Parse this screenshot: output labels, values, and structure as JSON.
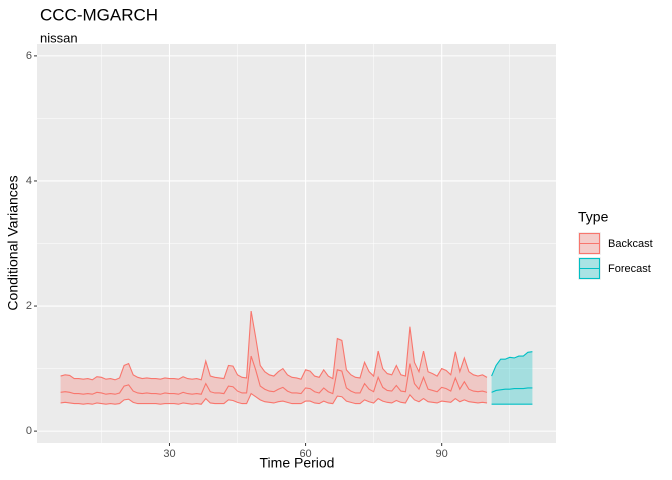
{
  "chart_data": {
    "type": "ribbon",
    "title": "CCC-MGARCH",
    "subtitle": "nissan",
    "x_label": "Time Period",
    "y_label": "Conditional Variances",
    "legend_title": "Type",
    "xlim": [
      0.8,
      115.2
    ],
    "ylim": [
      -0.19,
      6.19
    ],
    "xticks": [
      30,
      60,
      90
    ],
    "yticks": [
      0,
      2,
      4,
      6
    ],
    "grid": true,
    "series": [
      {
        "name": "Backcast",
        "color": "#F8766D",
        "x": [
          6,
          7,
          8,
          9,
          10,
          11,
          12,
          13,
          14,
          15,
          16,
          17,
          18,
          19,
          20,
          21,
          22,
          23,
          24,
          25,
          26,
          27,
          28,
          29,
          30,
          31,
          32,
          33,
          34,
          35,
          36,
          37,
          38,
          39,
          40,
          41,
          42,
          43,
          44,
          45,
          46,
          47,
          48,
          49,
          50,
          51,
          52,
          53,
          54,
          55,
          56,
          57,
          58,
          59,
          60,
          61,
          62,
          63,
          64,
          65,
          66,
          67,
          68,
          69,
          70,
          71,
          72,
          73,
          74,
          75,
          76,
          77,
          78,
          79,
          80,
          81,
          82,
          83,
          84,
          85,
          86,
          87,
          88,
          89,
          90,
          91,
          92,
          93,
          94,
          95,
          96,
          97,
          98,
          99,
          100
        ],
        "upper": [
          0.88,
          0.9,
          0.89,
          0.84,
          0.84,
          0.83,
          0.84,
          0.82,
          0.87,
          0.86,
          0.83,
          0.84,
          0.82,
          0.85,
          1.05,
          1.08,
          0.9,
          0.86,
          0.84,
          0.85,
          0.84,
          0.84,
          0.83,
          0.85,
          0.84,
          0.84,
          0.83,
          0.87,
          0.84,
          0.83,
          0.84,
          0.82,
          1.12,
          0.88,
          0.86,
          0.85,
          0.84,
          1.05,
          1.04,
          0.9,
          0.86,
          0.85,
          1.92,
          1.5,
          1.05,
          0.95,
          0.9,
          0.88,
          0.95,
          1.0,
          0.9,
          0.86,
          0.85,
          0.83,
          0.98,
          0.96,
          0.88,
          0.86,
          0.98,
          0.88,
          0.84,
          1.48,
          1.45,
          0.98,
          0.9,
          0.86,
          0.85,
          1.1,
          0.95,
          0.88,
          1.28,
          1.0,
          0.92,
          0.9,
          1.05,
          0.9,
          0.88,
          1.67,
          1.1,
          0.95,
          1.28,
          0.95,
          0.92,
          0.88,
          1.0,
          0.97,
          0.9,
          1.27,
          0.95,
          1.17,
          0.95,
          0.9,
          0.88,
          0.9,
          0.86
        ],
        "values": [
          0.62,
          0.63,
          0.62,
          0.6,
          0.6,
          0.59,
          0.6,
          0.59,
          0.62,
          0.61,
          0.59,
          0.6,
          0.59,
          0.61,
          0.72,
          0.74,
          0.64,
          0.61,
          0.6,
          0.61,
          0.6,
          0.6,
          0.59,
          0.61,
          0.6,
          0.6,
          0.59,
          0.62,
          0.6,
          0.59,
          0.6,
          0.59,
          0.76,
          0.63,
          0.61,
          0.61,
          0.6,
          0.72,
          0.71,
          0.64,
          0.61,
          0.61,
          1.2,
          0.98,
          0.72,
          0.67,
          0.64,
          0.63,
          0.67,
          0.7,
          0.64,
          0.61,
          0.61,
          0.6,
          0.69,
          0.68,
          0.63,
          0.61,
          0.69,
          0.63,
          0.6,
          0.98,
          0.96,
          0.69,
          0.64,
          0.61,
          0.61,
          0.76,
          0.67,
          0.63,
          0.86,
          0.7,
          0.65,
          0.64,
          0.73,
          0.64,
          0.63,
          1.08,
          0.76,
          0.67,
          0.86,
          0.67,
          0.65,
          0.63,
          0.7,
          0.68,
          0.64,
          0.85,
          0.67,
          0.79,
          0.67,
          0.64,
          0.63,
          0.64,
          0.62
        ],
        "lower": [
          0.45,
          0.46,
          0.45,
          0.44,
          0.44,
          0.43,
          0.44,
          0.43,
          0.45,
          0.44,
          0.43,
          0.44,
          0.43,
          0.44,
          0.5,
          0.51,
          0.46,
          0.44,
          0.44,
          0.44,
          0.44,
          0.44,
          0.43,
          0.44,
          0.44,
          0.44,
          0.43,
          0.45,
          0.44,
          0.43,
          0.44,
          0.43,
          0.52,
          0.45,
          0.44,
          0.44,
          0.44,
          0.5,
          0.49,
          0.46,
          0.44,
          0.44,
          0.6,
          0.55,
          0.5,
          0.47,
          0.46,
          0.45,
          0.47,
          0.48,
          0.46,
          0.44,
          0.44,
          0.44,
          0.48,
          0.48,
          0.45,
          0.44,
          0.48,
          0.45,
          0.44,
          0.56,
          0.55,
          0.48,
          0.46,
          0.44,
          0.44,
          0.5,
          0.47,
          0.45,
          0.52,
          0.48,
          0.46,
          0.45,
          0.49,
          0.46,
          0.45,
          0.58,
          0.5,
          0.47,
          0.52,
          0.47,
          0.46,
          0.45,
          0.48,
          0.47,
          0.46,
          0.52,
          0.47,
          0.5,
          0.47,
          0.46,
          0.45,
          0.46,
          0.45
        ]
      },
      {
        "name": "Forecast",
        "color": "#00BFC4",
        "x": [
          101,
          102,
          103,
          104,
          105,
          106,
          107,
          108,
          109,
          110
        ],
        "upper": [
          0.88,
          1.05,
          1.15,
          1.15,
          1.18,
          1.17,
          1.2,
          1.2,
          1.26,
          1.27
        ],
        "values": [
          0.62,
          0.65,
          0.66,
          0.67,
          0.67,
          0.68,
          0.68,
          0.68,
          0.69,
          0.69
        ],
        "lower": [
          0.43,
          0.43,
          0.43,
          0.43,
          0.43,
          0.43,
          0.43,
          0.43,
          0.43,
          0.43
        ]
      }
    ]
  }
}
